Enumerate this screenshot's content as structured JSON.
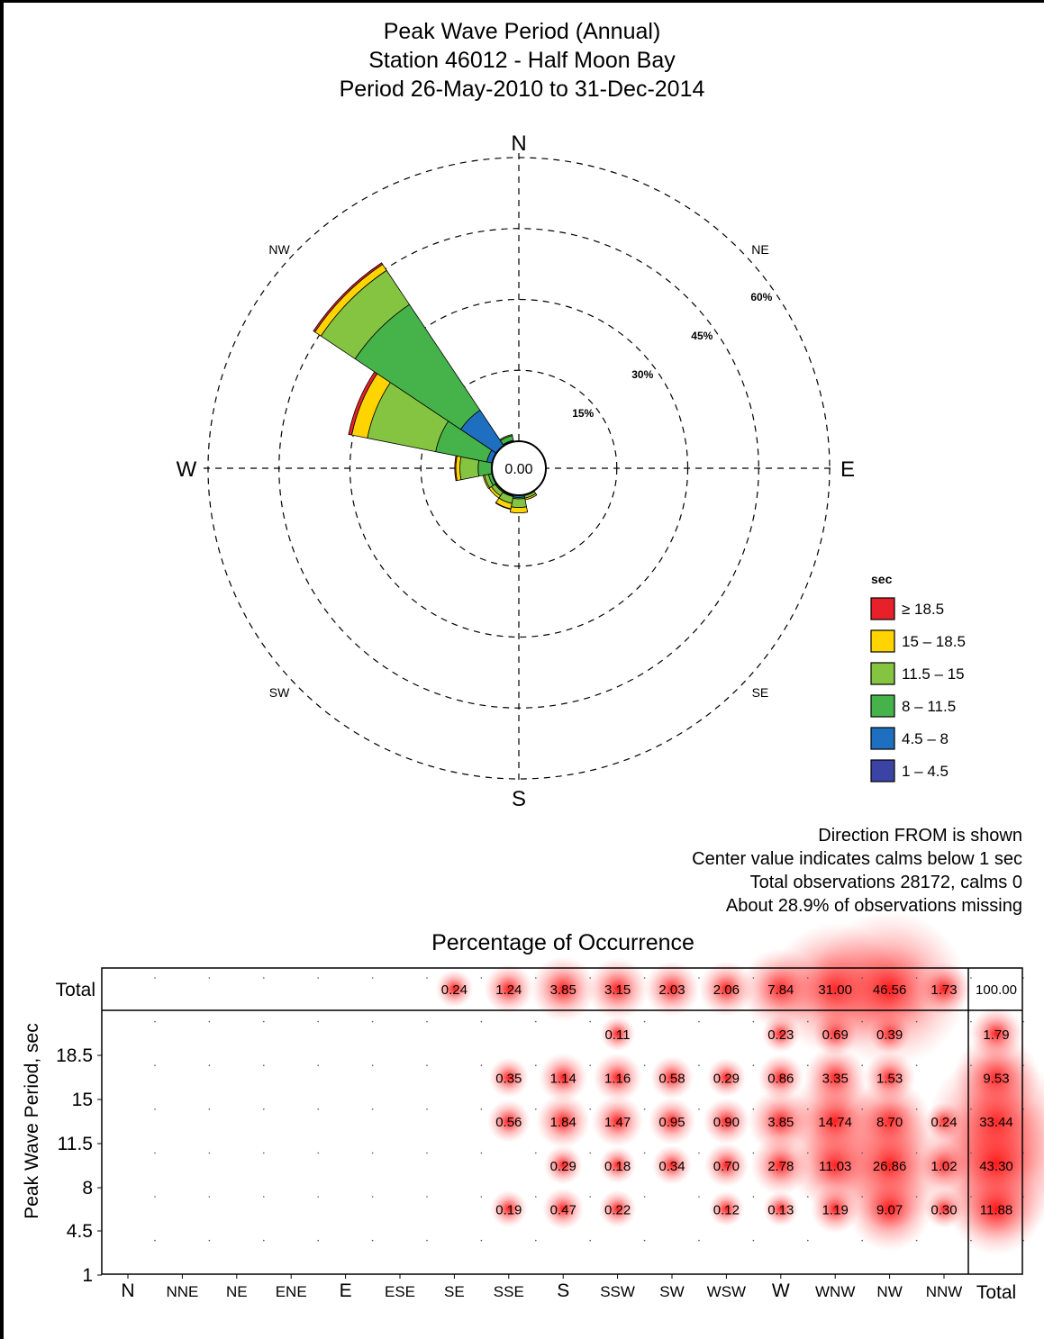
{
  "titles": {
    "line1": "Peak Wave Period (Annual)",
    "line2": "Station 46012 - Half Moon Bay",
    "line3": "Period 26-May-2010 to 31-Dec-2014"
  },
  "notes": {
    "line1": "Direction FROM is shown",
    "line2": "Center value indicates calms below  1 sec",
    "line3": "Total observations 28172, calms 0",
    "line4": "About 28.9% of observations missing"
  },
  "table_title": "Percentage of Occurrence",
  "chart_data": [
    {
      "type": "wind-rose",
      "center_value": "0.00",
      "compass_labels": {
        "N": "N",
        "E": "E",
        "S": "S",
        "W": "W",
        "NE": "NE",
        "SE": "SE",
        "SW": "SW",
        "NW": "NW"
      },
      "rings": [
        {
          "value": 15,
          "label": "15%"
        },
        {
          "value": 30,
          "label": "30%"
        },
        {
          "value": 45,
          "label": "45%"
        },
        {
          "value": 60,
          "label": "60%"
        }
      ],
      "legend_title": "sec",
      "legend_position": "right",
      "bins": [
        {
          "label": "≥ 18.5",
          "color": "#e8202a"
        },
        {
          "label": "15 – 18.5",
          "color": "#ffd400"
        },
        {
          "label": "11.5 – 15",
          "color": "#84c441"
        },
        {
          "label": "8 – 11.5",
          "color": "#45b34a"
        },
        {
          "label": "4.5 – 8",
          "color": "#1f6fc0"
        },
        {
          "label": "1 – 4.5",
          "color": "#3b44a4"
        }
      ],
      "directions": [
        "N",
        "NNE",
        "NE",
        "ENE",
        "E",
        "ESE",
        "SE",
        "SSE",
        "S",
        "SSW",
        "SW",
        "WSW",
        "W",
        "WNW",
        "NW",
        "NNW"
      ],
      "sector_values_by_bin": {
        "≥ 18.5": [
          0,
          0,
          0,
          0,
          0,
          0,
          0,
          0,
          0,
          0.11,
          0,
          0,
          0.23,
          0.69,
          0.39,
          0
        ],
        "15 – 18.5": [
          0,
          0,
          0,
          0,
          0,
          0,
          0,
          0.35,
          1.14,
          1.16,
          0.58,
          0.29,
          0.86,
          3.35,
          1.53,
          0
        ],
        "11.5 – 15": [
          0,
          0,
          0,
          0,
          0,
          0,
          0,
          0.56,
          1.84,
          1.47,
          0.95,
          0.9,
          3.85,
          14.74,
          8.7,
          0.24
        ],
        "8 – 11.5": [
          0,
          0,
          0,
          0,
          0,
          0,
          0,
          0,
          0.29,
          0.18,
          0.34,
          0.7,
          2.78,
          11.03,
          26.86,
          1.02
        ],
        "4.5 – 8": [
          0,
          0,
          0,
          0,
          0,
          0,
          0,
          0.19,
          0.47,
          0.22,
          0,
          0.12,
          0.13,
          1.19,
          9.07,
          0.3
        ],
        "1 – 4.5": [
          0,
          0,
          0,
          0,
          0,
          0,
          0,
          0,
          0,
          0,
          0,
          0,
          0,
          0,
          0,
          0
        ]
      }
    },
    {
      "type": "table",
      "ylabel": "Peak Wave Period, sec",
      "x_labels": [
        "N",
        "NNE",
        "NE",
        "ENE",
        "E",
        "ESE",
        "SE",
        "SSE",
        "S",
        "SSW",
        "SW",
        "WSW",
        "W",
        "WNW",
        "NW",
        "NNW"
      ],
      "total_col_label": "Total",
      "total_row_label": "Total",
      "y_ticks": [
        "18.5",
        "15",
        "11.5",
        "8",
        "4.5",
        "1"
      ],
      "total_row": [
        "",
        "",
        "",
        "",
        "",
        "",
        "0.24",
        "1.24",
        "3.85",
        "3.15",
        "2.03",
        "2.06",
        "7.84",
        "31.00",
        "46.56",
        "1.73",
        "100.00"
      ],
      "rows": [
        {
          "bin": "≥ 18.5",
          "cells": [
            "",
            "",
            "",
            "",
            "",
            "",
            "",
            "",
            "",
            "0.11",
            "",
            "",
            "0.23",
            "0.69",
            "0.39",
            ""
          ],
          "total": "1.79"
        },
        {
          "bin": "15 – 18.5",
          "cells": [
            "",
            "",
            "",
            "",
            "",
            "",
            "",
            "0.35",
            "1.14",
            "1.16",
            "0.58",
            "0.29",
            "0.86",
            "3.35",
            "1.53",
            ""
          ],
          "total": "9.53"
        },
        {
          "bin": "11.5 – 15",
          "cells": [
            "",
            "",
            "",
            "",
            "",
            "",
            "",
            "0.56",
            "1.84",
            "1.47",
            "0.95",
            "0.90",
            "3.85",
            "14.74",
            "8.70",
            "0.24"
          ],
          "total": "33.44"
        },
        {
          "bin": "8 – 11.5",
          "cells": [
            "",
            "",
            "",
            "",
            "",
            "",
            "",
            "",
            "0.29",
            "0.18",
            "0.34",
            "0.70",
            "2.78",
            "11.03",
            "26.86",
            "1.02"
          ],
          "total": "43.30"
        },
        {
          "bin": "4.5 – 8",
          "cells": [
            "",
            "",
            "",
            "",
            "",
            "",
            "",
            "0.19",
            "0.47",
            "0.22",
            "",
            "0.12",
            "0.13",
            "1.19",
            "9.07",
            "0.30"
          ],
          "total": "11.88"
        },
        {
          "bin": "1 – 4.5",
          "cells": [
            "",
            "",
            "",
            "",
            "",
            "",
            "",
            "",
            "",
            "",
            "",
            "",
            "",
            "",
            "",
            ""
          ],
          "total": ""
        }
      ]
    }
  ]
}
